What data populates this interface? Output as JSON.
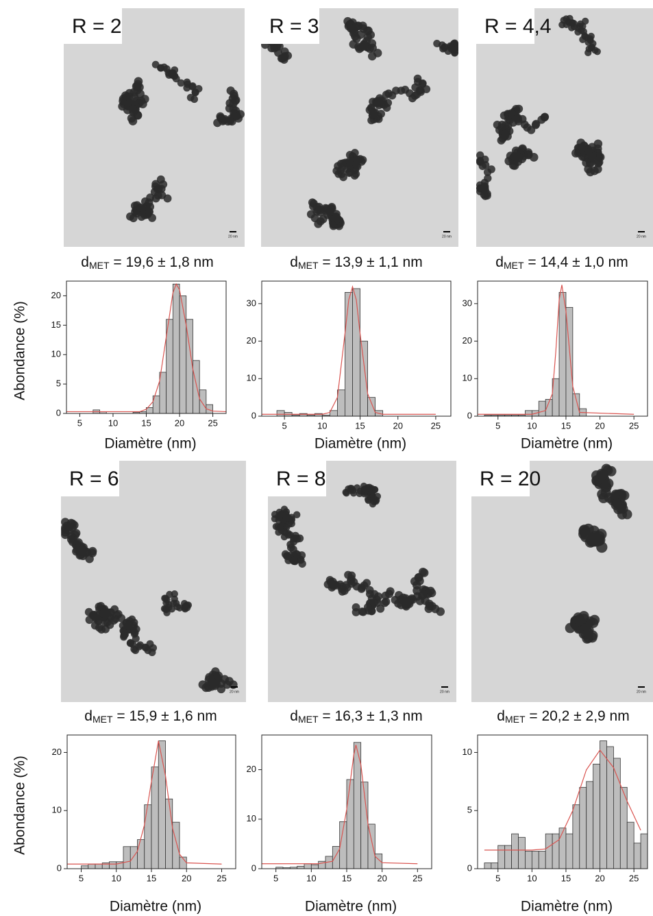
{
  "chart_data": [
    {
      "type": "histogram",
      "label": "R = 2",
      "scale_bar": "20 nm",
      "caption": {
        "symbol": "d",
        "subscript": "MET",
        "text": " = 19,6 ± 1,8 nm"
      },
      "xlabel": "Diamètre (nm)",
      "ylabel": "Abondance (%)",
      "color": "#bdbdbd",
      "bins": [
        7,
        8,
        9,
        10,
        11,
        12,
        13,
        14,
        15,
        16,
        17,
        18,
        19,
        20,
        21,
        22,
        23,
        24,
        25
      ],
      "values": [
        0.6,
        0.3,
        0,
        0,
        0,
        0,
        0.2,
        0.3,
        1,
        3,
        7,
        16,
        22,
        20,
        16,
        9,
        4,
        1.5
      ],
      "fit": {
        "color": "#d9534f",
        "x": [
          3,
          10,
          14,
          15,
          16,
          17,
          18,
          19,
          19.5,
          20,
          21,
          22,
          23,
          24,
          25,
          27
        ],
        "values": [
          0.3,
          0.3,
          0.3,
          0.7,
          2,
          5.5,
          13,
          20.5,
          22,
          21,
          15,
          7.5,
          2.5,
          0.8,
          0.4,
          0.3
        ]
      },
      "xlim": [
        3,
        27
      ],
      "ylim": [
        0,
        22.5
      ],
      "xticks": [
        5,
        10,
        15,
        20,
        25
      ],
      "yticks": [
        0,
        5,
        10,
        15,
        20
      ]
    },
    {
      "type": "histogram",
      "label": "R = 3",
      "scale_bar": "20 nm",
      "caption": {
        "symbol": "d",
        "subscript": "MET",
        "text": " = 13,9 ± 1,1 nm"
      },
      "xlabel": "Diamètre (nm)",
      "color": "#bdbdbd",
      "bins": [
        4,
        5,
        6,
        7,
        8,
        9,
        10,
        11,
        12,
        13,
        14,
        15,
        16,
        17,
        18
      ],
      "values": [
        1.5,
        1,
        0.3,
        0.7,
        0.3,
        0.7,
        0.3,
        1.5,
        7,
        33,
        34,
        20,
        5,
        1.5
      ],
      "fit": {
        "color": "#d9534f",
        "x": [
          2,
          10,
          11,
          12,
          13,
          13.5,
          14,
          14.5,
          15,
          16,
          17,
          18,
          25
        ],
        "values": [
          0.5,
          0.5,
          1,
          5,
          22,
          31,
          34.5,
          31,
          22,
          6,
          1,
          0.5,
          0.5
        ]
      },
      "xlim": [
        2,
        27
      ],
      "ylim": [
        0,
        36
      ],
      "xticks": [
        5,
        10,
        15,
        20,
        25
      ],
      "yticks": [
        0,
        10,
        20,
        30
      ]
    },
    {
      "type": "histogram",
      "label": "R = 4,4",
      "scale_bar": "20 nm",
      "caption": {
        "symbol": "d",
        "subscript": "MET",
        "text": " = 14,4 ± 1,0 nm"
      },
      "xlabel": "Diamètre (nm)",
      "color": "#bdbdbd",
      "bins": [
        3,
        4,
        5,
        6,
        7,
        8,
        9,
        10,
        11,
        12,
        13,
        14,
        15,
        16,
        17,
        18
      ],
      "values": [
        0.3,
        0.3,
        0.3,
        0.3,
        0.3,
        0.3,
        1.5,
        1.5,
        4,
        4.5,
        10,
        33,
        29,
        6,
        2
      ],
      "fit": {
        "color": "#d9534f",
        "x": [
          2,
          10,
          12,
          13,
          13.5,
          14,
          14.4,
          15,
          15.5,
          16,
          17,
          25
        ],
        "values": [
          0.5,
          0.5,
          1.5,
          6,
          17,
          31,
          35,
          28,
          18,
          8,
          1,
          0.5
        ]
      },
      "xlim": [
        2,
        27
      ],
      "ylim": [
        0,
        36
      ],
      "xticks": [
        5,
        10,
        15,
        20,
        25
      ],
      "yticks": [
        0,
        10,
        20,
        30
      ]
    },
    {
      "type": "histogram",
      "label": "R = 6",
      "scale_bar": "20 nm",
      "caption": {
        "symbol": "d",
        "subscript": "MET",
        "text": " = 15,9 ± 1,6 nm"
      },
      "xlabel": "Diamètre (nm)",
      "ylabel": "Abondance (%)",
      "color": "#bdbdbd",
      "bins": [
        5,
        6,
        7,
        8,
        9,
        10,
        11,
        12,
        13,
        14,
        15,
        16,
        17,
        18,
        19,
        20
      ],
      "values": [
        0.5,
        0.8,
        0.8,
        1,
        1.2,
        1.2,
        3.8,
        3.8,
        5,
        11,
        17.5,
        22,
        12,
        8,
        2
      ],
      "fit": {
        "color": "#d9534f",
        "x": [
          3,
          10,
          12,
          13,
          14,
          15,
          16,
          17,
          18,
          19,
          20,
          25
        ],
        "values": [
          0.8,
          0.8,
          1.3,
          3,
          7.5,
          15,
          22,
          16,
          7,
          2.5,
          1,
          0.8
        ]
      },
      "xlim": [
        3,
        27
      ],
      "ylim": [
        0,
        23
      ],
      "xticks": [
        5,
        10,
        15,
        20,
        25
      ],
      "yticks": [
        0,
        10,
        20
      ]
    },
    {
      "type": "histogram",
      "label": "R = 8",
      "scale_bar": "20 nm",
      "caption": {
        "symbol": "d",
        "subscript": "MET",
        "text": " = 16,3 ± 1,3 nm"
      },
      "xlabel": "Diamètre (nm)",
      "color": "#bdbdbd",
      "bins": [
        5,
        6,
        7,
        8,
        9,
        10,
        11,
        12,
        13,
        14,
        15,
        16,
        17,
        18,
        19,
        20
      ],
      "values": [
        0.3,
        0.2,
        0.3,
        0.5,
        1,
        0.8,
        1.5,
        2.5,
        4.5,
        9.5,
        18,
        25.5,
        17.5,
        9,
        3
      ],
      "fit": {
        "color": "#d9534f",
        "x": [
          3,
          11,
          13,
          14,
          15,
          16,
          16.3,
          17,
          18,
          19,
          20,
          25
        ],
        "values": [
          1,
          1,
          1.5,
          4,
          12,
          23,
          25,
          21,
          9,
          2.5,
          1.2,
          1
        ]
      },
      "xlim": [
        3,
        27
      ],
      "ylim": [
        0,
        27
      ],
      "xticks": [
        5,
        10,
        15,
        20,
        25
      ],
      "yticks": [
        0,
        10,
        20
      ]
    },
    {
      "type": "histogram",
      "label": "R = 20",
      "scale_bar": "20 nm",
      "caption": {
        "symbol": "d",
        "subscript": "MET",
        "text": " = 20,2 ± 2,9 nm"
      },
      "xlabel": "Diamètre (nm)",
      "color": "#bdbdbd",
      "bins": [
        3,
        4,
        5,
        6,
        7,
        8,
        9,
        10,
        11,
        12,
        13,
        14,
        15,
        16,
        17,
        18,
        19,
        20,
        21,
        22,
        23,
        24,
        25,
        26,
        27
      ],
      "values": [
        0.5,
        0.5,
        2,
        2,
        3,
        2.7,
        1.5,
        1.5,
        1.5,
        3,
        3,
        3.5,
        3,
        5.5,
        7,
        7.5,
        9,
        11,
        10.5,
        9.5,
        7,
        4,
        2.2,
        3
      ],
      "fit": {
        "color": "#d9534f",
        "x": [
          3,
          10,
          12,
          14,
          16,
          18,
          20,
          22,
          24,
          26
        ],
        "values": [
          1.6,
          1.6,
          1.7,
          2.5,
          5,
          8.5,
          10.2,
          8.7,
          5.8,
          3.3
        ]
      },
      "xlim": [
        2,
        27
      ],
      "ylim": [
        0,
        11.5
      ],
      "xticks": [
        5,
        10,
        15,
        20,
        25
      ],
      "yticks": [
        0,
        5,
        10
      ]
    }
  ]
}
